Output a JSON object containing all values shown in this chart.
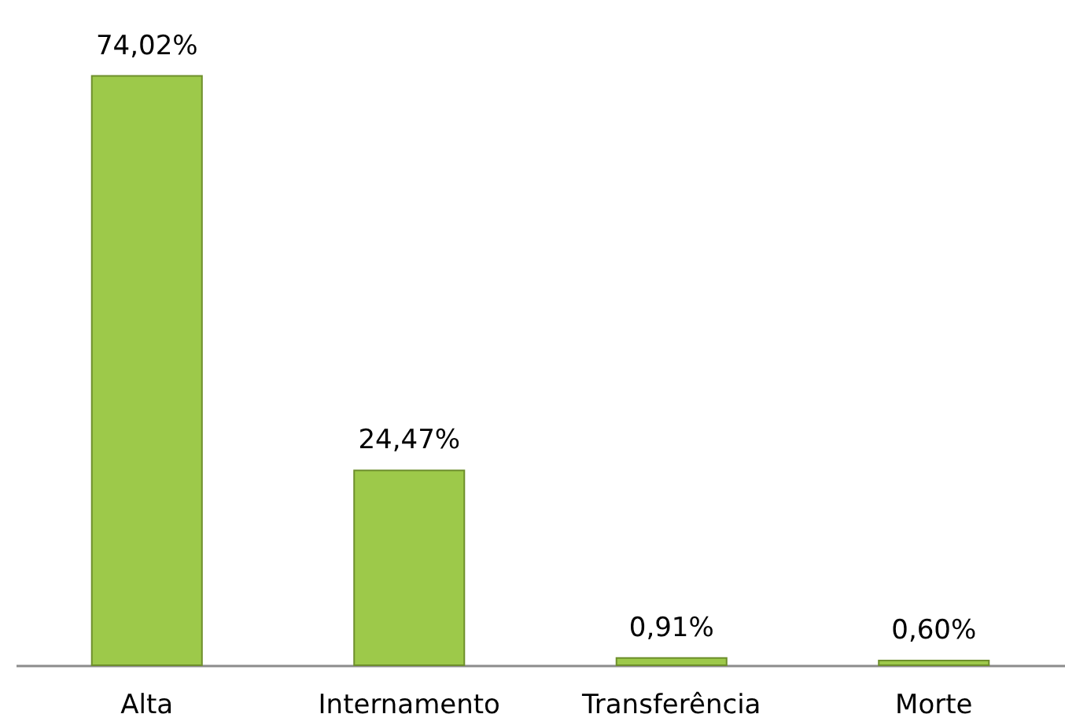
{
  "chart_data": {
    "type": "bar",
    "categories": [
      "Alta",
      "Internamento",
      "Transferência",
      "Morte"
    ],
    "values": [
      74.02,
      24.47,
      0.91,
      0.6
    ],
    "value_labels": [
      "74,02%",
      "24,47%",
      "0,91%",
      "0,60%"
    ],
    "color": "#9dc94a",
    "tick_labels": "x"
  }
}
